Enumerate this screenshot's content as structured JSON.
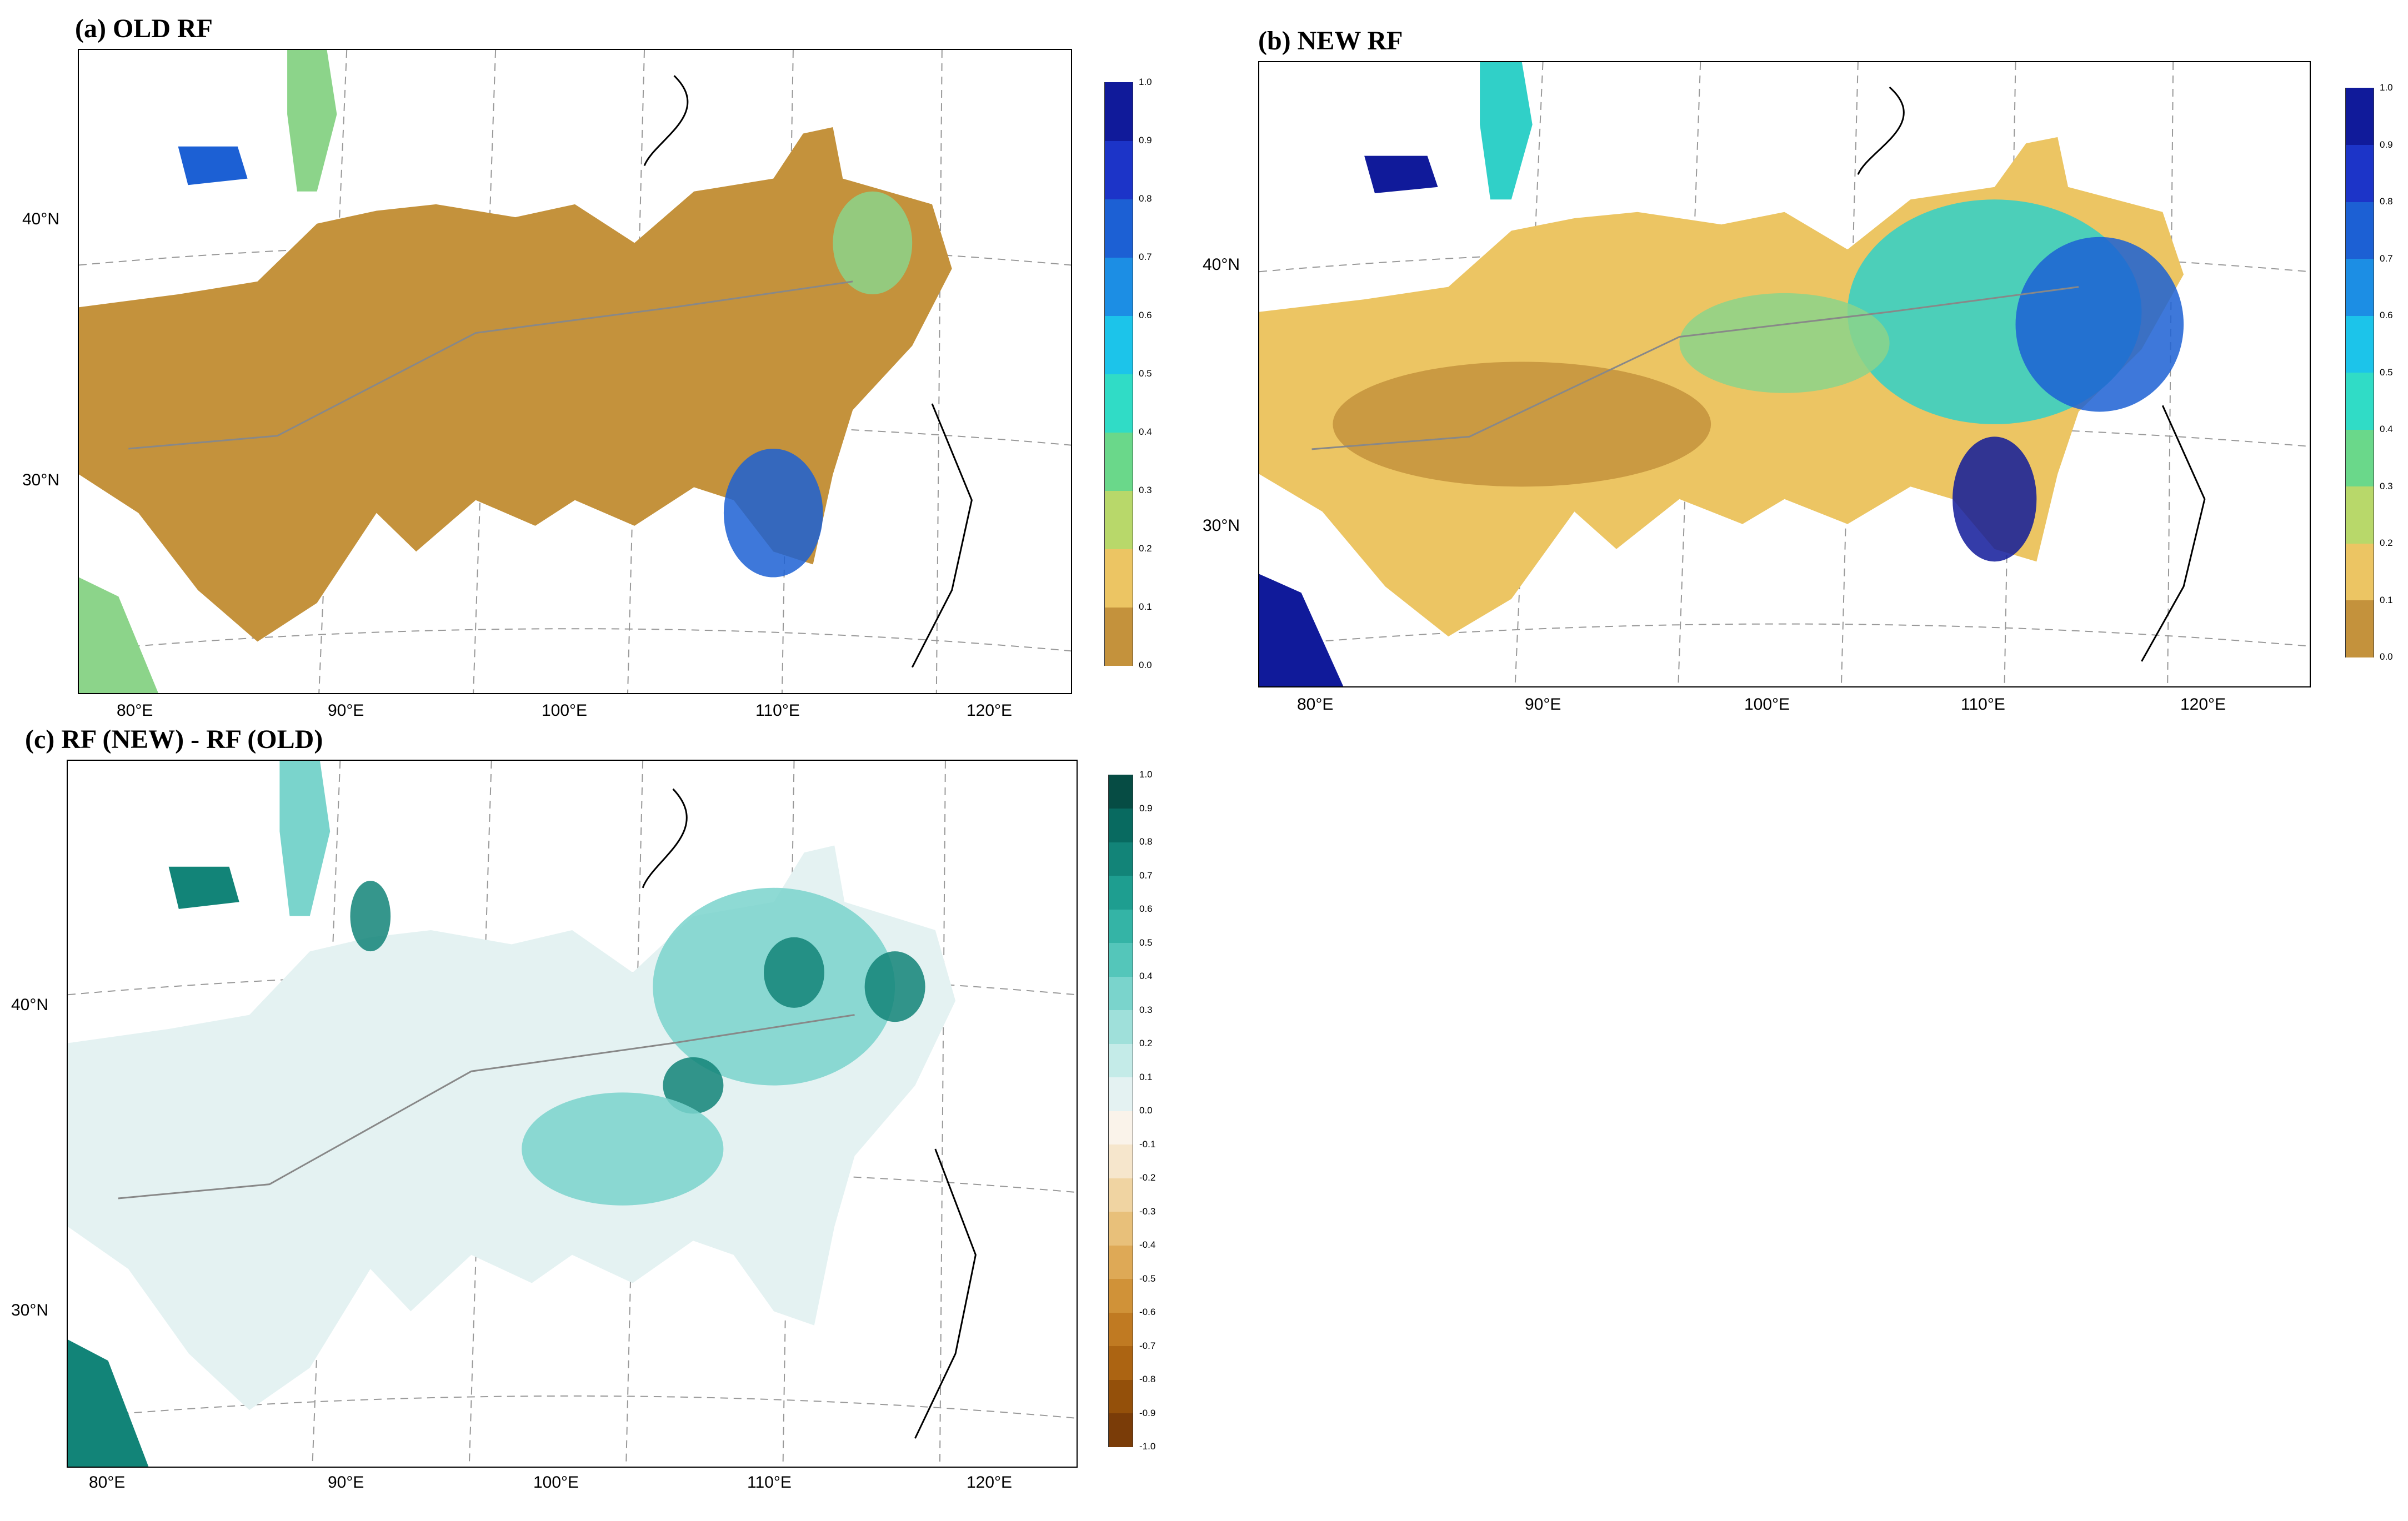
{
  "panels": {
    "a": {
      "title": "(a) OLD RF"
    },
    "b": {
      "title": "(b) NEW RF"
    },
    "c": {
      "title": "(c) RF (NEW) - RF (OLD)"
    }
  },
  "axes": {
    "lon_labels": [
      "80°E",
      "90°E",
      "100°E",
      "110°E",
      "120°E"
    ],
    "lat_labels": [
      "40°N",
      "30°N"
    ]
  },
  "colorbar_rf": {
    "ticks": [
      "1.0",
      "0.9",
      "0.8",
      "0.7",
      "0.6",
      "0.5",
      "0.4",
      "0.3",
      "0.2",
      "0.1",
      "0.0"
    ],
    "colors": [
      "#c4923c",
      "#ecc563",
      "#b8d86a",
      "#6ad88a",
      "#30dcc6",
      "#1cc4ea",
      "#1c8ee4",
      "#1c60d4",
      "#1c34c8",
      "#101a9a"
    ]
  },
  "colorbar_diff": {
    "ticks": [
      "1.0",
      "0.9",
      "0.8",
      "0.7",
      "0.6",
      "0.5",
      "0.4",
      "0.3",
      "0.2",
      "0.1",
      "0.0",
      "-0.1",
      "-0.2",
      "-0.3",
      "-0.4",
      "-0.5",
      "-0.6",
      "-0.7",
      "-0.8",
      "-0.9",
      "-1.0"
    ],
    "colors": [
      "#7a3c08",
      "#94500a",
      "#ac6412",
      "#c07a22",
      "#d09238",
      "#dea956",
      "#e8c07a",
      "#f0d4a2",
      "#f6e6cc",
      "#faf3ea",
      "#e4f2f2",
      "#c4ebe8",
      "#9fe0da",
      "#7ad4cc",
      "#54c6ba",
      "#34b4a6",
      "#1e9e90",
      "#128478",
      "#086a60",
      "#064c44"
    ]
  },
  "map_colors": {
    "old_rf_low": "#c4923c",
    "old_rf_mid": "#ecc563",
    "new_rf_green": "#8cd48a",
    "new_rf_cyan": "#30d0c8",
    "new_rf_blue": "#1c60d4",
    "new_rf_navy": "#101a9a",
    "diff_light": "#e4f2f2",
    "diff_mid": "#7ad4cc",
    "diff_dark": "#128478",
    "border_line": "#888888",
    "coast_line": "#000000"
  }
}
